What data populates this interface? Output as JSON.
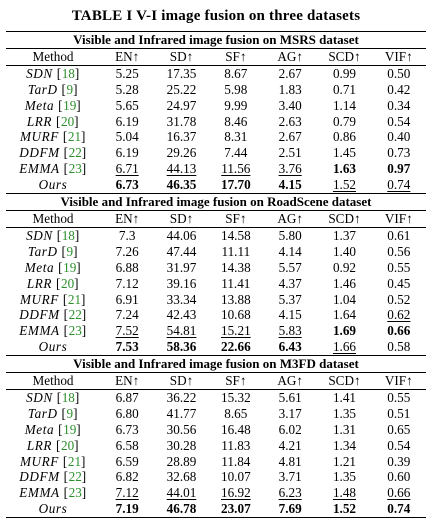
{
  "title": "TABLE I V-I image fusion on three datasets",
  "columns": [
    "Method",
    "EN↑",
    "SD↑",
    "SF↑",
    "AG↑",
    "SCD↑",
    "VIF↑"
  ],
  "sections": [
    {
      "title": "Visible and Infrared image fusion on MSRS dataset",
      "rows": [
        {
          "method": "SDN",
          "ref": "18",
          "values": [
            "5.25",
            "17.35",
            "8.67",
            "2.67",
            "0.99",
            "0.50"
          ],
          "bold": [],
          "underline": []
        },
        {
          "method": "TarD",
          "ref": "9",
          "values": [
            "5.28",
            "25.22",
            "5.98",
            "1.83",
            "0.71",
            "0.42"
          ],
          "bold": [],
          "underline": []
        },
        {
          "method": "Meta",
          "ref": "19",
          "values": [
            "5.65",
            "24.97",
            "9.99",
            "3.40",
            "1.14",
            "0.34"
          ],
          "bold": [],
          "underline": []
        },
        {
          "method": "LRR",
          "ref": "20",
          "values": [
            "6.19",
            "31.78",
            "8.46",
            "2.63",
            "0.79",
            "0.54"
          ],
          "bold": [],
          "underline": []
        },
        {
          "method": "MURF",
          "ref": "21",
          "values": [
            "5.04",
            "16.37",
            "8.31",
            "2.67",
            "0.86",
            "0.40"
          ],
          "bold": [],
          "underline": []
        },
        {
          "method": "DDFM",
          "ref": "22",
          "values": [
            "6.19",
            "29.26",
            "7.44",
            "2.51",
            "1.45",
            "0.73"
          ],
          "bold": [],
          "underline": []
        },
        {
          "method": "EMMA",
          "ref": "23",
          "values": [
            "6.71",
            "44.13",
            "11.56",
            "3.76",
            "1.63",
            "0.97"
          ],
          "bold": [
            4,
            5
          ],
          "underline": [
            0,
            1,
            2,
            3
          ]
        },
        {
          "method": "Ours",
          "ref": "",
          "values": [
            "6.73",
            "46.35",
            "17.70",
            "4.15",
            "1.52",
            "0.74"
          ],
          "bold": [
            0,
            1,
            2,
            3
          ],
          "underline": [
            4,
            5
          ]
        }
      ]
    },
    {
      "title": "Visible and Infrared image fusion on RoadScene dataset",
      "rows": [
        {
          "method": "SDN",
          "ref": "18",
          "values": [
            "7.3",
            "44.06",
            "14.58",
            "5.80",
            "1.37",
            "0.61"
          ],
          "bold": [],
          "underline": []
        },
        {
          "method": "TarD",
          "ref": "9",
          "values": [
            "7.26",
            "47.44",
            "11.11",
            "4.14",
            "1.40",
            "0.56"
          ],
          "bold": [],
          "underline": []
        },
        {
          "method": "Meta",
          "ref": "19",
          "values": [
            "6.88",
            "31.97",
            "14.38",
            "5.57",
            "0.92",
            "0.55"
          ],
          "bold": [],
          "underline": []
        },
        {
          "method": "LRR",
          "ref": "20",
          "values": [
            "7.12",
            "39.16",
            "11.41",
            "4.37",
            "1.46",
            "0.45"
          ],
          "bold": [],
          "underline": []
        },
        {
          "method": "MURF",
          "ref": "21",
          "values": [
            "6.91",
            "33.34",
            "13.88",
            "5.37",
            "1.04",
            "0.52"
          ],
          "bold": [],
          "underline": []
        },
        {
          "method": "DDFM",
          "ref": "22",
          "values": [
            "7.24",
            "42.43",
            "10.68",
            "4.15",
            "1.64",
            "0.62"
          ],
          "bold": [],
          "underline": [
            5
          ]
        },
        {
          "method": "EMMA",
          "ref": "23",
          "values": [
            "7.52",
            "54.81",
            "15.21",
            "5.83",
            "1.69",
            "0.66"
          ],
          "bold": [
            4,
            5
          ],
          "underline": [
            0,
            1,
            2,
            3
          ]
        },
        {
          "method": "Ours",
          "ref": "",
          "values": [
            "7.53",
            "58.36",
            "22.66",
            "6.43",
            "1.66",
            "0.58"
          ],
          "bold": [
            0,
            1,
            2,
            3
          ],
          "underline": [
            4
          ]
        }
      ]
    },
    {
      "title": "Visible and Infrared image fusion on M3FD dataset",
      "rows": [
        {
          "method": "SDN",
          "ref": "18",
          "values": [
            "6.87",
            "36.22",
            "15.32",
            "5.61",
            "1.41",
            "0.55"
          ],
          "bold": [],
          "underline": []
        },
        {
          "method": "TarD",
          "ref": "9",
          "values": [
            "6.80",
            "41.77",
            "8.65",
            "3.17",
            "1.35",
            "0.51"
          ],
          "bold": [],
          "underline": []
        },
        {
          "method": "Meta",
          "ref": "19",
          "values": [
            "6.73",
            "30.56",
            "16.48",
            "6.02",
            "1.31",
            "0.65"
          ],
          "bold": [],
          "underline": []
        },
        {
          "method": "LRR",
          "ref": "20",
          "values": [
            "6.58",
            "30.28",
            "11.83",
            "4.21",
            "1.34",
            "0.54"
          ],
          "bold": [],
          "underline": []
        },
        {
          "method": "MURF",
          "ref": "21",
          "values": [
            "6.59",
            "28.89",
            "11.84",
            "4.81",
            "1.21",
            "0.39"
          ],
          "bold": [],
          "underline": []
        },
        {
          "method": "DDFM",
          "ref": "22",
          "values": [
            "6.82",
            "32.68",
            "10.07",
            "3.71",
            "1.35",
            "0.60"
          ],
          "bold": [],
          "underline": []
        },
        {
          "method": "EMMA",
          "ref": "23",
          "values": [
            "7.12",
            "44.01",
            "16.92",
            "6.23",
            "1.48",
            "0.66"
          ],
          "bold": [],
          "underline": [
            0,
            1,
            2,
            3,
            4,
            5
          ]
        },
        {
          "method": "Ours",
          "ref": "",
          "values": [
            "7.19",
            "46.78",
            "23.07",
            "7.69",
            "1.52",
            "0.74"
          ],
          "bold": [
            0,
            1,
            2,
            3,
            4,
            5
          ],
          "underline": []
        }
      ]
    }
  ]
}
